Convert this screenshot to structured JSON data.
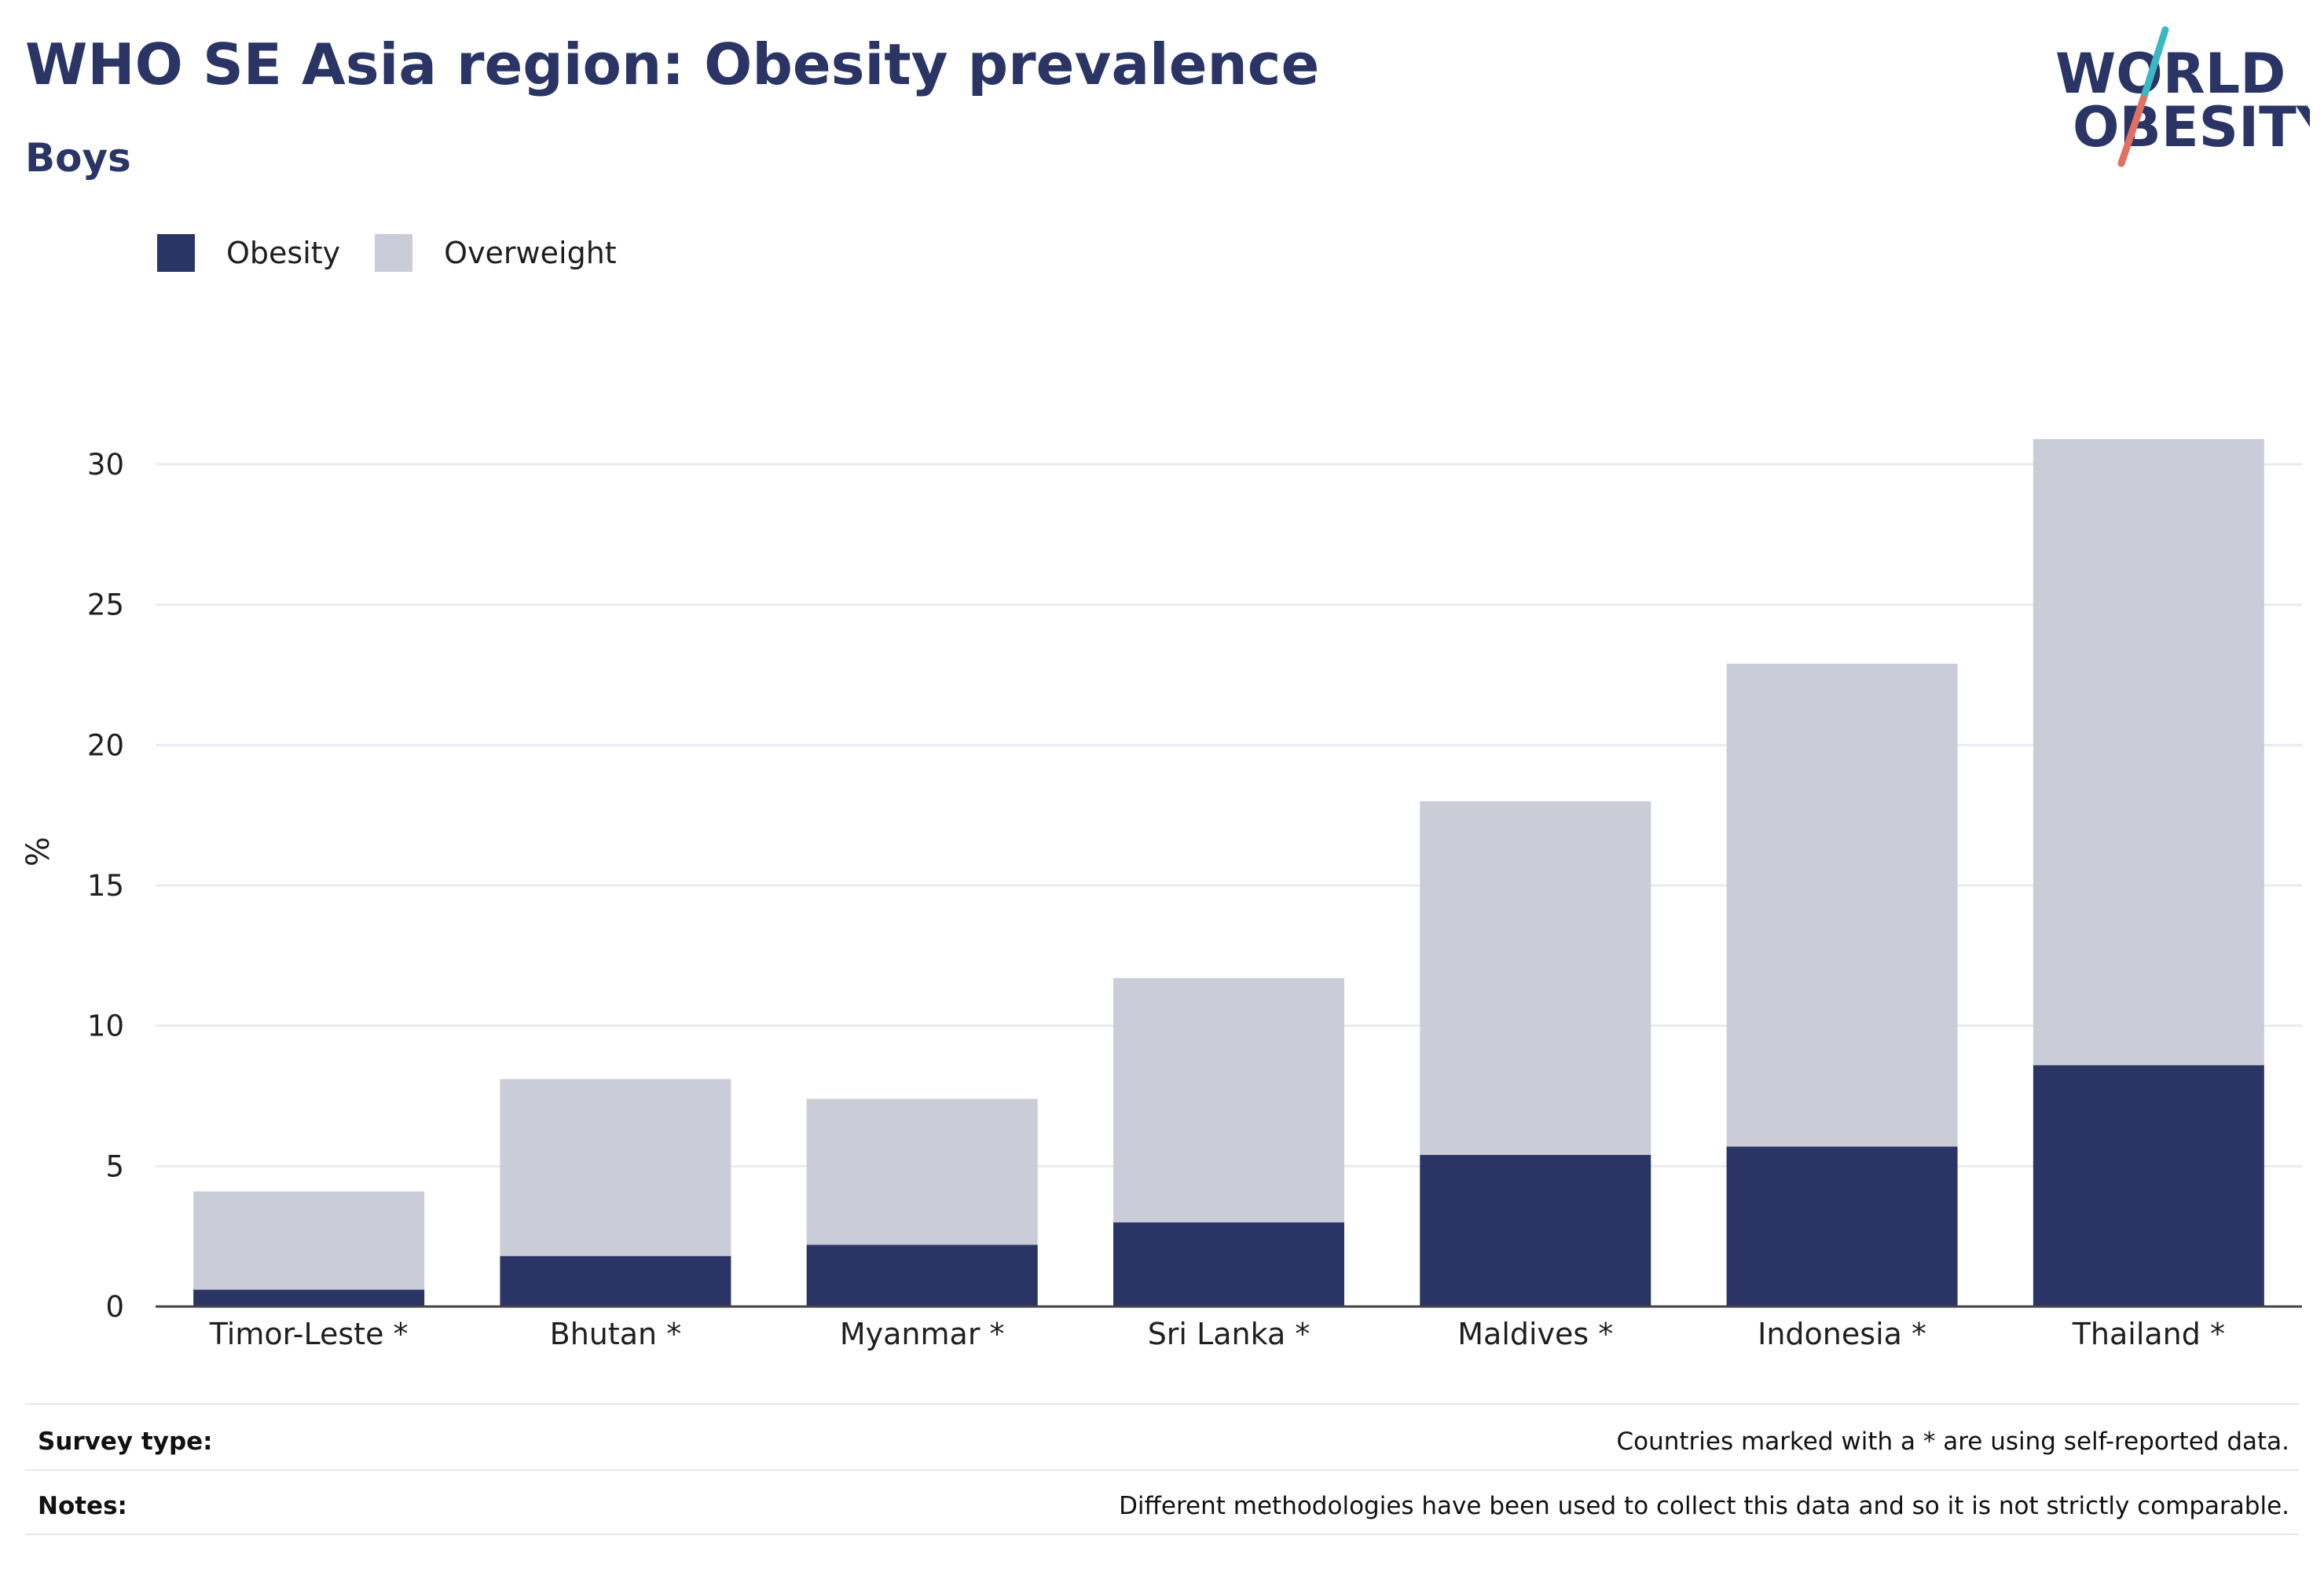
{
  "header": {
    "title": "WHO SE Asia region: Obesity prevalence",
    "subtitle": "Boys"
  },
  "logo": {
    "line1": "WORLD",
    "line2": "OBESITY",
    "text_color": "#2a3566",
    "slash_top_color": "#3bb8c4",
    "slash_bottom_color": "#e0705f"
  },
  "legend": {
    "items": [
      {
        "label": "Obesity",
        "color": "#2a3566"
      },
      {
        "label": "Overweight",
        "color": "#cacdd8"
      }
    ]
  },
  "chart_data": {
    "type": "bar",
    "stacked": true,
    "title": "WHO SE Asia region: Obesity prevalence",
    "subtitle": "Boys",
    "xlabel": "",
    "ylabel": "%",
    "ylim": [
      0,
      31
    ],
    "yticks": [
      0,
      5,
      10,
      15,
      20,
      25,
      30
    ],
    "grid": true,
    "legend_position": "top-left",
    "categories": [
      "Timor-Leste *",
      "Bhutan *",
      "Myanmar *",
      "Sri Lanka *",
      "Maldives *",
      "Indonesia *",
      "Thailand *"
    ],
    "series": [
      {
        "name": "Obesity",
        "color": "#2a3566",
        "values": [
          0.6,
          1.8,
          2.2,
          3.0,
          5.4,
          5.7,
          8.6
        ]
      },
      {
        "name": "Overweight",
        "color": "#cacdd8",
        "values": [
          3.5,
          6.3,
          5.2,
          8.7,
          12.6,
          17.2,
          22.3
        ]
      }
    ]
  },
  "footer": {
    "survey_label": "Survey type:",
    "survey_text": "Countries marked with a * are using self-reported data.",
    "notes_label": "Notes:",
    "notes_text": "Different methodologies have been used to collect this data and so it is not strictly comparable."
  }
}
